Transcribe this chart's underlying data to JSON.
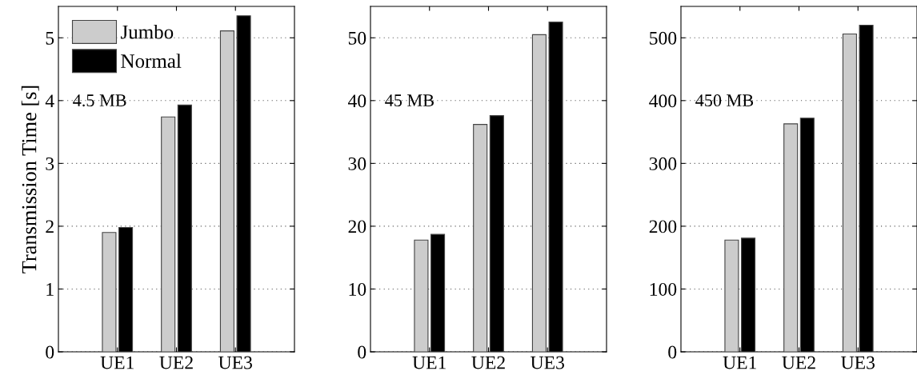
{
  "chart_data": [
    {
      "type": "bar",
      "ylabel": "Transmission Time [s]",
      "categories": [
        "UE1",
        "UE2",
        "UE3"
      ],
      "ylim": [
        0,
        5.5
      ],
      "yticks": [
        0,
        1,
        2,
        3,
        4,
        5
      ],
      "grid": "y",
      "legend": "top left",
      "annotations": [
        "4.5 MB"
      ],
      "series": [
        {
          "name": "Jumbo",
          "color": "#cccccc",
          "values": [
            1.9,
            3.74,
            5.11
          ]
        },
        {
          "name": "Normal",
          "color": "#000000",
          "values": [
            1.98,
            3.93,
            5.35
          ]
        }
      ]
    },
    {
      "type": "bar",
      "categories": [
        "UE1",
        "UE2",
        "UE3"
      ],
      "ylim": [
        0,
        55
      ],
      "yticks": [
        0,
        10,
        20,
        30,
        40,
        50
      ],
      "grid": "y",
      "annotations": [
        "45 MB"
      ],
      "series": [
        {
          "color": "#cccccc",
          "values": [
            17.8,
            36.2,
            50.5
          ]
        },
        {
          "color": "#000000",
          "values": [
            18.7,
            37.6,
            52.5
          ]
        }
      ]
    },
    {
      "type": "bar",
      "categories": [
        "UE1",
        "UE2",
        "UE3"
      ],
      "ylim": [
        0,
        550
      ],
      "yticks": [
        0,
        100,
        200,
        300,
        400,
        500
      ],
      "grid": "y",
      "annotations": [
        "450 MB"
      ],
      "series": [
        {
          "color": "#cccccc",
          "values": [
            178,
            363,
            506
          ]
        },
        {
          "color": "#000000",
          "values": [
            181,
            372,
            520
          ]
        }
      ]
    }
  ]
}
